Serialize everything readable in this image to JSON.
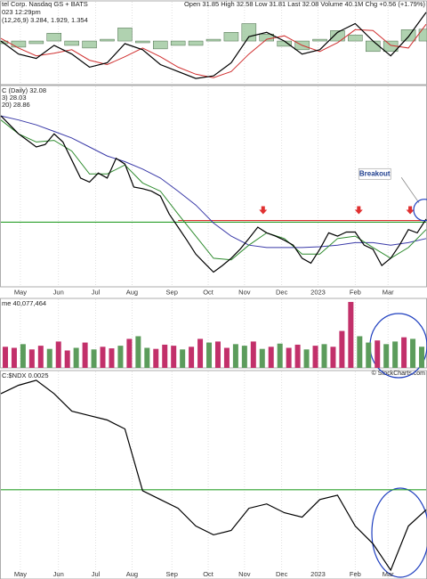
{
  "header": {
    "name": "tel Corp. Nasdaq GS + BATS",
    "quote": "Open 31.85 High 32.58 Low 31.81 Last 32.08 Volume 40.1M Chg +0.56 (+1.79%)",
    "time": "023 12:29pm"
  },
  "watermark": "© StockCharts.com",
  "chart_data": [
    {
      "type": "line",
      "label": "(12,26,9) 3.284, 1.929, 1.354",
      "xlim": [
        0,
        48
      ],
      "ylim": [
        -5,
        4.5
      ],
      "x": [
        0,
        2,
        4,
        6,
        8,
        10,
        12,
        14,
        16,
        18,
        20,
        22,
        24,
        26,
        28,
        30,
        32,
        34,
        36,
        38,
        40,
        42,
        44,
        46,
        48
      ],
      "series": [
        {
          "type": "bar",
          "color": "#8fbf8f",
          "values": [
            -0.3,
            -0.7,
            -0.3,
            0.9,
            -0.5,
            -0.8,
            0.2,
            1.5,
            -0.2,
            -0.9,
            -0.5,
            -0.5,
            0.2,
            1.0,
            2.0,
            0.8,
            -0.6,
            -1.0,
            0.2,
            1.2,
            0.7,
            -1.2,
            -1.2,
            1.3,
            1.354
          ]
        },
        {
          "type": "line",
          "color": "#d03030",
          "values": [
            0.3,
            -0.8,
            -1.7,
            -1.4,
            -1.0,
            -2.2,
            -2.7,
            -1.8,
            -0.8,
            -1.8,
            -3.0,
            -3.8,
            -4.2,
            -3.5,
            -1.5,
            0.2,
            0.6,
            -0.5,
            -1.2,
            -0.2,
            1.3,
            1.2,
            -0.5,
            -0.8,
            1.929
          ]
        },
        {
          "type": "line",
          "color": "#000000",
          "values": [
            0,
            -1.5,
            -2,
            -0.5,
            -1.5,
            -3,
            -2.5,
            -0.3,
            -1,
            -2.7,
            -3.5,
            -4.3,
            -4,
            -2.5,
            0.5,
            1,
            0,
            -1.5,
            -1,
            1,
            2,
            0,
            -1.7,
            0.5,
            3.284
          ]
        }
      ]
    },
    {
      "type": "line",
      "labels": [
        "C (Daily) 32.08",
        "3) 28.03",
        "20) 28.86"
      ],
      "xlim": [
        0,
        48
      ],
      "ylim": [
        23.8,
        48.3
      ],
      "xticks": [
        {
          "value": 2.2,
          "label": "May"
        },
        {
          "value": 6.5,
          "label": "Jun"
        },
        {
          "value": 10.7,
          "label": "Jul"
        },
        {
          "value": 14.8,
          "label": "Aug"
        },
        {
          "value": 19.3,
          "label": "Sep"
        },
        {
          "value": 23.4,
          "label": "Oct"
        },
        {
          "value": 27.5,
          "label": "Nov"
        },
        {
          "value": 31.7,
          "label": "Dec"
        },
        {
          "value": 35.8,
          "label": "2023"
        },
        {
          "value": 40,
          "label": "Feb"
        },
        {
          "value": 43.7,
          "label": "Mar"
        }
      ],
      "levels": [
        {
          "value": 31.7,
          "color": "#2ca02c",
          "from": 0
        },
        {
          "value": 31.9,
          "color": "#e03030",
          "from": 20
        }
      ],
      "series": [
        {
          "type": "line",
          "color": "#3a3aa8",
          "x": [
            0,
            2,
            4,
            6,
            8,
            10,
            12,
            14,
            16,
            18,
            20,
            22,
            24,
            26,
            28,
            30,
            32,
            34,
            36,
            38,
            40,
            42,
            44,
            46,
            48
          ],
          "values": [
            44.7,
            44.2,
            43.6,
            42.8,
            42.0,
            40.9,
            39.8,
            39.1,
            38.2,
            37.1,
            35.5,
            33.8,
            31.6,
            30.0,
            28.9,
            28.6,
            28.6,
            28.6,
            28.7,
            28.9,
            29.2,
            29.2,
            28.9,
            29.2,
            29.7
          ]
        },
        {
          "type": "line",
          "color": "#2e8b2e",
          "x": [
            0,
            2,
            4,
            6,
            8,
            10,
            12,
            14,
            16,
            18,
            20,
            22,
            24,
            26,
            28,
            30,
            32,
            34,
            36,
            38,
            40,
            42,
            44,
            46,
            48
          ],
          "values": [
            44.2,
            42.5,
            41.5,
            41.7,
            40.4,
            37.6,
            37.6,
            38.7,
            36.5,
            35.5,
            32.7,
            30.0,
            27.3,
            27.1,
            28.9,
            30.4,
            29.7,
            27.8,
            27.8,
            29.7,
            30.0,
            28.6,
            27.3,
            28.6,
            30.8
          ]
        },
        {
          "type": "line",
          "color": "#000000",
          "x": [
            0,
            1,
            2,
            3,
            4,
            5,
            6,
            7,
            8,
            9,
            10,
            11,
            12,
            13,
            14,
            15,
            16,
            17,
            18,
            19,
            20,
            21,
            22,
            23,
            24,
            25,
            26,
            27,
            28,
            29,
            30,
            31,
            32,
            33,
            34,
            35,
            36,
            37,
            38,
            39,
            40,
            41,
            42,
            43,
            44,
            45,
            46,
            47,
            48
          ],
          "values": [
            44.7,
            43.6,
            42.5,
            41.7,
            40.9,
            41.2,
            42.5,
            41.5,
            39.3,
            37.1,
            36.6,
            37.7,
            37.1,
            39.5,
            38.8,
            36.0,
            35.8,
            35.5,
            34.9,
            32.7,
            31.1,
            29.5,
            27.8,
            26.7,
            25.6,
            26.4,
            27.3,
            28.4,
            29.7,
            31.1,
            30.4,
            30.0,
            29.5,
            28.9,
            27.3,
            26.7,
            28.4,
            30.4,
            30.0,
            30.5,
            30.5,
            28.9,
            28.4,
            26.4,
            27.3,
            28.9,
            30.8,
            30.4,
            32.08
          ]
        }
      ],
      "markers": [
        {
          "x": 29.6,
          "value": 33.0,
          "color": "#e03030"
        },
        {
          "x": 40.4,
          "value": 33.0,
          "color": "#e03030"
        },
        {
          "x": 46.2,
          "value": 33.0,
          "color": "#e03030"
        }
      ],
      "annotation": {
        "text": "Breakout",
        "x": 42.2,
        "value": 37.6,
        "target": [
          47.8,
          33.2
        ]
      }
    },
    {
      "type": "bar",
      "label": "me 40,077,464",
      "xlim": [
        0,
        48
      ],
      "ylim": [
        0,
        130000000
      ],
      "values": [
        40000000,
        38000000,
        45000000,
        35000000,
        42000000,
        36000000,
        50000000,
        33000000,
        38000000,
        48000000,
        35000000,
        40000000,
        37000000,
        42000000,
        55000000,
        60000000,
        38000000,
        36000000,
        44000000,
        42000000,
        35000000,
        40000000,
        55000000,
        48000000,
        50000000,
        38000000,
        45000000,
        42000000,
        50000000,
        36000000,
        40000000,
        46000000,
        38000000,
        44000000,
        35000000,
        42000000,
        45000000,
        40000000,
        70000000,
        125000000,
        60000000,
        48000000,
        52000000,
        45000000,
        50000000,
        58000000,
        55000000,
        40077464
      ],
      "colors": [
        "#c2306a",
        "#c2306a",
        "#5c9c5c",
        "#c2306a",
        "#c2306a",
        "#5c9c5c",
        "#c2306a",
        "#c2306a",
        "#5c9c5c",
        "#c2306a",
        "#5c9c5c",
        "#c2306a",
        "#c2306a",
        "#5c9c5c",
        "#c2306a",
        "#5c9c5c",
        "#5c9c5c",
        "#c2306a",
        "#c2306a",
        "#c2306a",
        "#5c9c5c",
        "#c2306a",
        "#c2306a",
        "#5c9c5c",
        "#c2306a",
        "#c2306a",
        "#5c9c5c",
        "#5c9c5c",
        "#c2306a",
        "#5c9c5c",
        "#c2306a",
        "#5c9c5c",
        "#c2306a",
        "#c2306a",
        "#5c9c5c",
        "#c2306a",
        "#5c9c5c",
        "#c2306a",
        "#c2306a",
        "#c2306a",
        "#5c9c5c",
        "#5c9c5c",
        "#c2306a",
        "#5c9c5c",
        "#5c9c5c",
        "#c2306a",
        "#5c9c5c",
        "#5c9c5c"
      ]
    },
    {
      "type": "line",
      "label": "C:$NDX 0.0025",
      "xlim": [
        0,
        48
      ],
      "ylim": [
        0.002,
        0.0035
      ],
      "levels": [
        {
          "value": 0.002645,
          "color": "#2ca02c",
          "from": 0
        }
      ],
      "series": [
        {
          "type": "line",
          "color": "#000000",
          "x": [
            0,
            2,
            4,
            6,
            8,
            10,
            12,
            14,
            16,
            18,
            20,
            22,
            24,
            26,
            28,
            30,
            32,
            34,
            36,
            38,
            40,
            42,
            44,
            46,
            48
          ],
          "values": [
            0.00334,
            0.0034,
            0.003436,
            0.00334,
            0.003213,
            0.003181,
            0.003149,
            0.003085,
            0.002638,
            0.002574,
            0.002511,
            0.002383,
            0.002319,
            0.002351,
            0.002511,
            0.002543,
            0.002479,
            0.002447,
            0.002574,
            0.002606,
            0.002383,
            0.002255,
            0.002064,
            0.002383,
            0.0025
          ]
        }
      ]
    }
  ]
}
